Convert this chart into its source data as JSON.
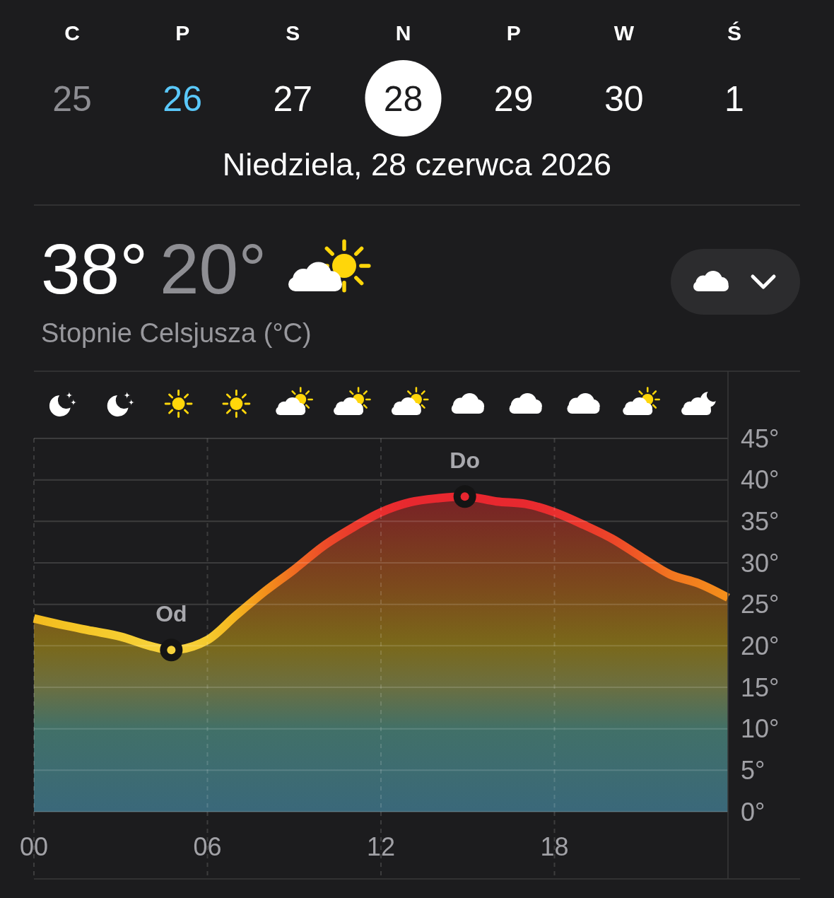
{
  "chart_data": {
    "type": "area",
    "title": "Niedziela, 28 czerwca 2026",
    "subtitle": "Stopnie Celsjusza (°C)",
    "annotations": [
      "C",
      "P",
      "S",
      "N",
      "P",
      "W",
      "Ś",
      "25",
      "26",
      "27",
      "28",
      "29",
      "30",
      "1",
      "38°",
      "20°",
      {
        "text": "Od",
        "x": 4.75,
        "y": 19.5
      },
      {
        "text": "Do",
        "x": 14.9,
        "y": 38
      }
    ],
    "x": [
      0,
      1,
      2,
      3,
      4,
      4.75,
      6,
      7,
      8,
      9,
      10,
      11,
      12,
      13,
      14,
      14.9,
      16,
      17,
      18,
      19,
      20,
      21,
      22,
      23,
      24
    ],
    "values": [
      23.3,
      22.5,
      21.8,
      21.1,
      20.0,
      19.5,
      20.7,
      23.7,
      26.6,
      29.2,
      32.0,
      34.2,
      36.1,
      37.3,
      37.8,
      38.0,
      37.4,
      37.1,
      36.1,
      34.6,
      32.9,
      30.7,
      28.6,
      27.5,
      25.8
    ],
    "color": "#e8282f",
    "colors": [
      "#f3bb1f",
      "#f4c223",
      "#f5c82a",
      "#f5cc30",
      "#f6d038",
      "#f6d23c",
      "#f5ca2e",
      "#f4b41f",
      "#f3901b",
      "#f06c21",
      "#ed4d28",
      "#ea3a2c",
      "#e92e2e",
      "#e8282f",
      "#e8282f",
      "#e8262f",
      "#e8282f",
      "#e8292f",
      "#e92e2e",
      "#ea382c",
      "#ec4629",
      "#ef5c24",
      "#f27520",
      "#f3821d",
      "#f5901a"
    ],
    "xlim": [
      0,
      24
    ],
    "xticks": [
      {
        "value": 0,
        "label": "00"
      },
      {
        "value": 6,
        "label": "06"
      },
      {
        "value": 12,
        "label": "12"
      },
      {
        "value": 18,
        "label": "18"
      }
    ],
    "ylim": [
      0,
      45
    ],
    "yticks": [
      {
        "value": 0,
        "label": "0°"
      },
      {
        "value": 5,
        "label": "5°"
      },
      {
        "value": 10,
        "label": "10°"
      },
      {
        "value": 15,
        "label": "15°"
      },
      {
        "value": 20,
        "label": "20°"
      },
      {
        "value": 25,
        "label": "25°"
      },
      {
        "value": 30,
        "label": "30°"
      },
      {
        "value": 35,
        "label": "35°"
      },
      {
        "value": 40,
        "label": "40°"
      },
      {
        "value": 45,
        "label": "45°"
      }
    ],
    "grid": true
  }
}
